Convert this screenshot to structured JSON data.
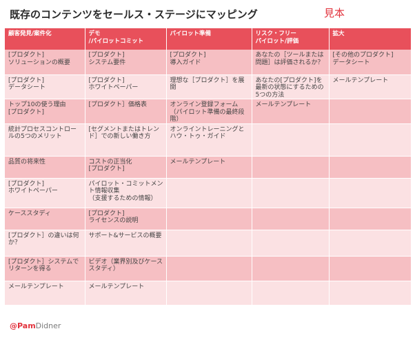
{
  "title": "既存のコンテンツをセールス・ステージにマッピング",
  "sample_label": "見本",
  "headers": [
    "顧客発見/案件化",
    "デモ\n/パイロットコミット",
    "パイロット準備",
    "リスク・フリー\nパイロット/評価",
    "拡大"
  ],
  "rows": [
    [
      "[プロダクト]\nソリューションの概要",
      "[プロダクト]\nシステム要件",
      "[プロダクト]\n導入ガイド",
      "あなたの［ツールまたは問題］は評価されるか？",
      "[その他のプロダクト]\nデータシート"
    ],
    [
      "[プロダクト]\nデータシート",
      "[プロダクト]\nホワイトペーパー",
      "理想な［プロダクト］を展開",
      "あなたの[プロダクト]を最新の状態にするための5つの方法",
      "メールテンプレート"
    ],
    [
      "トップ10の使う理由\n[プロダクト]",
      "[プロダクト］価格表",
      "オンライン登録フォーム（パイロット準備の最終段階）",
      "メールテンプレート",
      ""
    ],
    [
      "統計プロセスコントロールの5つのメリット",
      "[セグメントまたはトレンド］での新しい働き方",
      "オンライントレーニングとハウ・トゥ・ガイド",
      "",
      ""
    ],
    [
      "品質の将来性",
      "コストの正当化\n[プロダクト]",
      "メールテンプレート",
      "",
      ""
    ],
    [
      "[プロダクト]\nホワイトペーパー",
      "パイロット・コミットメント情報収集\n（支援するための情報）",
      "",
      "",
      ""
    ],
    [
      "ケーススタディ",
      "[プロダクト]\nライセンスの説明",
      "",
      "",
      ""
    ],
    [
      "[プロダクト］の違いは何か？",
      "サポート&サービスの概要",
      "",
      "",
      ""
    ],
    [
      "[プロダクト］システムでリターンを得る",
      "ビデオ（業界別及びケーススタディ）",
      "",
      "",
      ""
    ],
    [
      "メールテンプレート",
      "メールテンプレート",
      "",
      "",
      ""
    ]
  ],
  "footer": {
    "at": "@Pam",
    "rest": "Didner"
  }
}
